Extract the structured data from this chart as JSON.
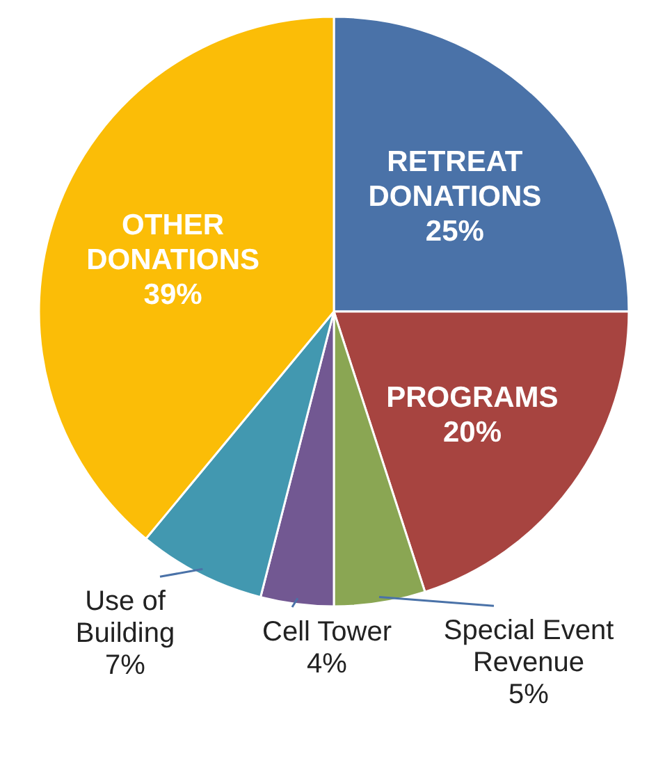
{
  "chart_data": {
    "type": "pie",
    "categories": [
      "RETREAT DONATIONS",
      "PROGRAMS",
      "Special Event Revenue",
      "Cell Tower",
      "Use of Building",
      "OTHER DONATIONS"
    ],
    "values": [
      25,
      20,
      5,
      4,
      7,
      39
    ],
    "colors": [
      "#4a72a8",
      "#a74440",
      "#8aa653",
      "#725892",
      "#4298b0",
      "#fbbd07"
    ],
    "value_labels": [
      "25%",
      "20%",
      "5%",
      "4%",
      "7%",
      "39%"
    ]
  }
}
